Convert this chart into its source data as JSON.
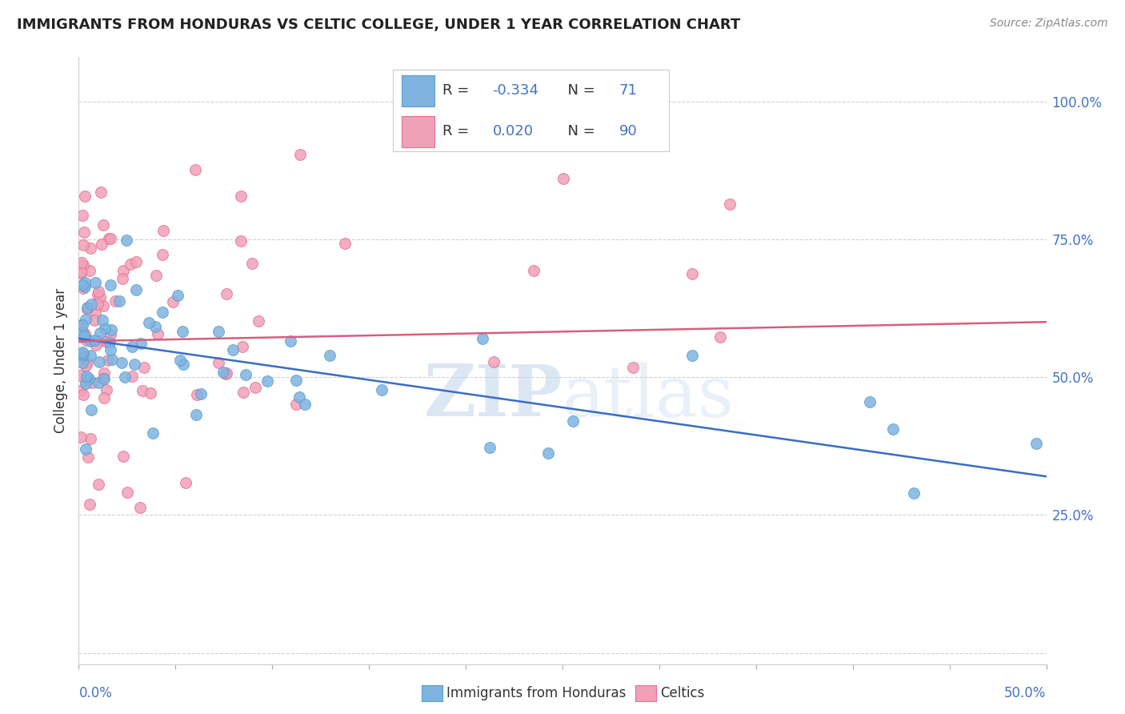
{
  "title": "IMMIGRANTS FROM HONDURAS VS CELTIC COLLEGE, UNDER 1 YEAR CORRELATION CHART",
  "source": "Source: ZipAtlas.com",
  "ylabel": "College, Under 1 year",
  "yticks": [
    0.0,
    0.25,
    0.5,
    0.75,
    1.0
  ],
  "ytick_labels": [
    "",
    "25.0%",
    "50.0%",
    "75.0%",
    "100.0%"
  ],
  "xlim": [
    0.0,
    0.5
  ],
  "ylim": [
    -0.02,
    1.08
  ],
  "blue_color": "#7fb3e0",
  "blue_edge": "#5a9fd4",
  "pink_color": "#f0a0b8",
  "pink_edge": "#e87090",
  "blue_line_color": "#3a6cc4",
  "pink_line_color": "#d46080",
  "axis_color": "#4472c4",
  "grid_color": "#cccccc",
  "background_color": "#ffffff",
  "title_color": "#222222",
  "source_color": "#888888",
  "legend_border": "#cccccc",
  "blue_R": "-0.334",
  "blue_N": "71",
  "pink_R": "0.020",
  "pink_N": "90",
  "blue_line_x": [
    0.0,
    0.5
  ],
  "blue_line_y": [
    0.57,
    0.32
  ],
  "pink_line_x": [
    0.0,
    0.5
  ],
  "pink_line_y": [
    0.565,
    0.6
  ],
  "watermark_zip": "ZIP",
  "watermark_atlas": "atlas",
  "bottom_legend_label1": "Immigrants from Honduras",
  "bottom_legend_label2": "Celtics"
}
